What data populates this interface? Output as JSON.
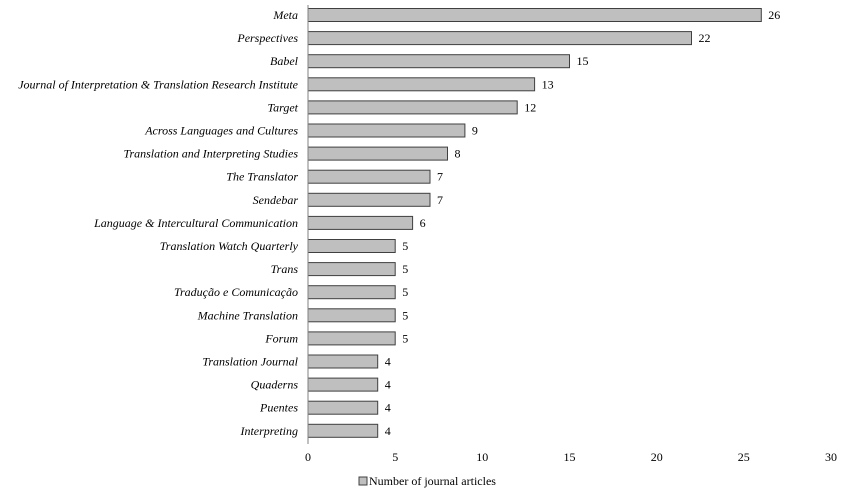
{
  "chart_data": {
    "type": "bar",
    "orientation": "horizontal",
    "categories": [
      "Meta",
      "Perspectives",
      "Babel",
      "Journal of Interpretation & Translation Research Institute",
      "Target",
      "Across Languages and Cultures",
      "Translation and Interpreting Studies",
      "The Translator",
      "Sendebar",
      "Language & Intercultural Communication",
      "Translation Watch Quarterly",
      "Trans",
      "Tradução e Comunicação",
      "Machine Translation",
      "Forum",
      "Translation Journal",
      "Quaderns",
      "Puentes",
      "Interpreting"
    ],
    "series": [
      {
        "name": "Number of journal articles",
        "values": [
          26,
          22,
          15,
          13,
          12,
          9,
          8,
          7,
          7,
          6,
          5,
          5,
          5,
          5,
          5,
          4,
          4,
          4,
          4
        ]
      }
    ],
    "xlim": [
      0,
      30
    ],
    "xticks": [
      0,
      5,
      10,
      15,
      20,
      25,
      30
    ],
    "legend_position": "bottom-center",
    "grid": false,
    "colors": {
      "bar_fill": "#bfbfbf",
      "bar_stroke": "#404040",
      "axis": "#808080"
    }
  }
}
